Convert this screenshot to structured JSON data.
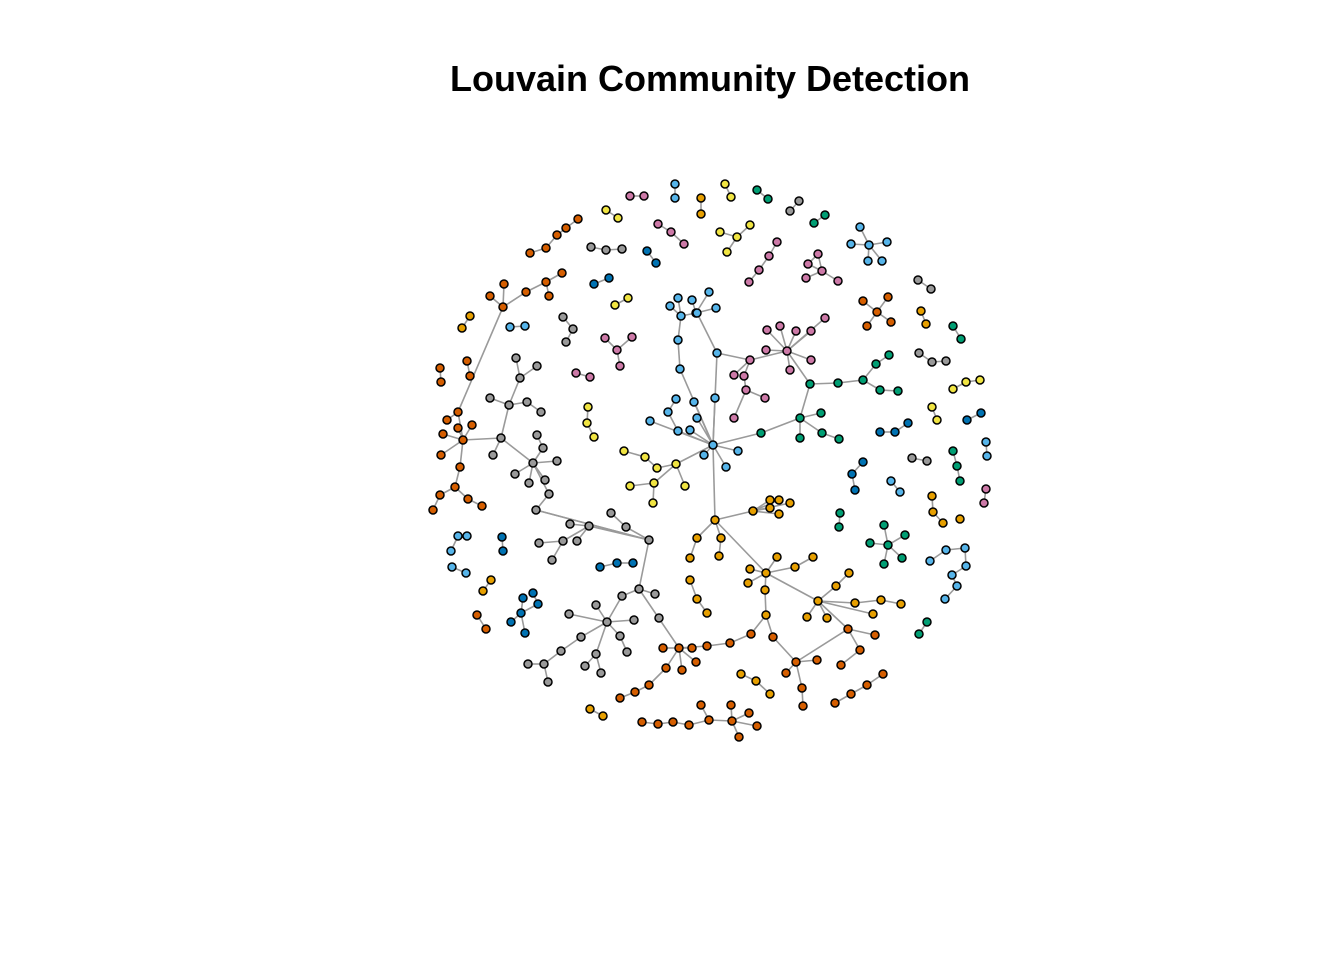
{
  "title": "Louvain Community Detection",
  "chart_data": {
    "type": "network",
    "layout": "force-directed",
    "node_outline": "#000000",
    "edge_color": "#9a9a9a",
    "communities": [
      {
        "id": "A",
        "color": "#56b4e9"
      },
      {
        "id": "B",
        "color": "#e69f00"
      },
      {
        "id": "C",
        "color": "#999999"
      },
      {
        "id": "D",
        "color": "#d55e00"
      },
      {
        "id": "E",
        "color": "#cc79a7"
      },
      {
        "id": "F",
        "color": "#009e73"
      },
      {
        "id": "G",
        "color": "#f0e442"
      },
      {
        "id": "H",
        "color": "#0072b2"
      }
    ]
  }
}
